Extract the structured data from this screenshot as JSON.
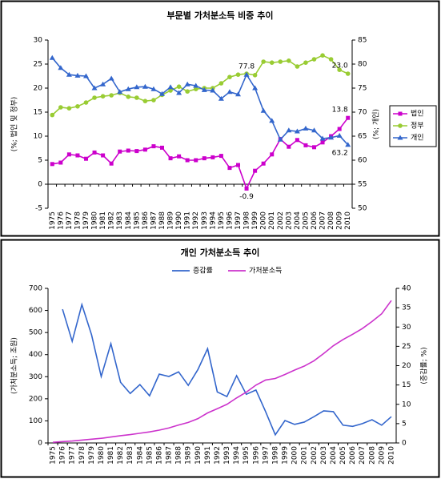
{
  "chart_data": [
    {
      "type": "line",
      "title": "부문별 가처분소득 비중 추이",
      "categories": [
        "1975",
        "1976",
        "1977",
        "1978",
        "1979",
        "1980",
        "1981",
        "1982",
        "1983",
        "1984",
        "1985",
        "1986",
        "1987",
        "1988",
        "1989",
        "1990",
        "1991",
        "1992",
        "1993",
        "1994",
        "1995",
        "1996",
        "1997",
        "1998",
        "1999",
        "2000",
        "2001",
        "2002",
        "2003",
        "2004",
        "2005",
        "2006",
        "2007",
        "2008",
        "2009",
        "2010"
      ],
      "ylabel": "(%; 법인 및 정부)",
      "y2label": "(%; 개인)",
      "ylim": [
        -5,
        30
      ],
      "yticks": [
        -5,
        0,
        5,
        10,
        15,
        20,
        25,
        30
      ],
      "y2lim": [
        50,
        85
      ],
      "y2ticks": [
        50,
        55,
        60,
        65,
        70,
        75,
        80,
        85
      ],
      "legend": "right",
      "series": [
        {
          "name": "법인",
          "color": "#cc00cc",
          "marker": "square",
          "axis": "y",
          "label_color": "#ff0000",
          "values": [
            4.2,
            4.5,
            6.2,
            6.0,
            5.3,
            6.6,
            6.0,
            4.3,
            6.8,
            7.0,
            6.9,
            7.2,
            7.9,
            7.6,
            5.4,
            5.8,
            5.0,
            5.0,
            5.4,
            5.6,
            5.9,
            3.4,
            4.0,
            -0.9,
            2.8,
            4.3,
            6.2,
            9.4,
            7.8,
            9.2,
            8.1,
            7.7,
            8.7,
            10.0,
            11.5,
            13.8
          ],
          "value_labels": [
            null,
            null,
            null,
            null,
            null,
            null,
            null,
            null,
            null,
            null,
            null,
            null,
            null,
            null,
            null,
            null,
            null,
            null,
            null,
            null,
            null,
            null,
            null,
            "-0.9",
            null,
            null,
            null,
            null,
            null,
            null,
            null,
            null,
            null,
            null,
            null,
            "13.8"
          ]
        },
        {
          "name": "정부",
          "color": "#99cc33",
          "marker": "circle",
          "axis": "y",
          "label_color": "#339999",
          "values": [
            14.4,
            16.0,
            15.8,
            16.2,
            17.0,
            18.0,
            18.3,
            18.5,
            19.0,
            18.2,
            18.0,
            17.3,
            17.5,
            18.6,
            19.5,
            20.3,
            19.3,
            19.8,
            20.0,
            20.0,
            21.0,
            22.3,
            22.8,
            23.0,
            22.7,
            25.5,
            25.3,
            25.5,
            25.7,
            24.5,
            25.3,
            26.0,
            26.8,
            26.0,
            23.8,
            23.0
          ],
          "value_labels": [
            null,
            null,
            null,
            null,
            null,
            null,
            null,
            null,
            null,
            null,
            null,
            null,
            null,
            null,
            null,
            null,
            null,
            null,
            null,
            null,
            null,
            null,
            null,
            null,
            null,
            null,
            null,
            null,
            null,
            null,
            null,
            null,
            null,
            null,
            null,
            "23.0"
          ]
        },
        {
          "name": "개인",
          "color": "#3366cc",
          "marker": "triangle",
          "axis": "y2",
          "label_color": "#336699",
          "values": [
            81.3,
            79.2,
            77.8,
            77.6,
            77.5,
            75.0,
            75.8,
            77.0,
            74.2,
            74.8,
            75.2,
            75.3,
            74.8,
            73.8,
            75.2,
            74.0,
            75.8,
            75.5,
            74.6,
            74.5,
            72.8,
            74.2,
            73.7,
            77.8,
            75.0,
            70.3,
            68.2,
            64.3,
            66.2,
            66.0,
            66.6,
            66.2,
            64.5,
            64.7,
            65.1,
            63.2
          ],
          "value_labels": [
            null,
            null,
            null,
            null,
            null,
            null,
            null,
            null,
            null,
            null,
            null,
            null,
            null,
            null,
            null,
            null,
            null,
            null,
            null,
            null,
            null,
            null,
            null,
            "77.8",
            null,
            null,
            null,
            null,
            null,
            null,
            null,
            null,
            null,
            null,
            null,
            "63.2"
          ]
        }
      ]
    },
    {
      "type": "line",
      "title": "개인 가처분소득 추이",
      "categories": [
        "1975",
        "1976",
        "1977",
        "1978",
        "1979",
        "1980",
        "1981",
        "1982",
        "1983",
        "1984",
        "1985",
        "1986",
        "1987",
        "1988",
        "1989",
        "1990",
        "1991",
        "1992",
        "1993",
        "1994",
        "1995",
        "1996",
        "1997",
        "1998",
        "1999",
        "2000",
        "2001",
        "2002",
        "2003",
        "2004",
        "2005",
        "2006",
        "2007",
        "2008",
        "2009",
        "2010"
      ],
      "ylabel": "(가처분소득; 조원)",
      "y2label": "(증감률; %)",
      "ylim": [
        0,
        700
      ],
      "yticks": [
        0,
        100,
        200,
        300,
        400,
        500,
        600,
        700
      ],
      "y2lim": [
        0,
        40
      ],
      "y2ticks": [
        0,
        5,
        10,
        15,
        20,
        25,
        30,
        35,
        40
      ],
      "legend": "top",
      "series": [
        {
          "name": "증감률",
          "color": "#3366cc",
          "axis": "y2",
          "values": [
            null,
            34.6,
            26.3,
            35.8,
            28.0,
            17.2,
            25.7,
            15.7,
            12.8,
            15.1,
            12.2,
            17.8,
            17.2,
            18.4,
            14.9,
            19.0,
            24.4,
            13.2,
            12.0,
            17.4,
            12.6,
            13.7,
            8.1,
            2.1,
            5.8,
            4.8,
            5.4,
            6.8,
            8.3,
            8.1,
            4.6,
            4.3,
            5.0,
            6.0,
            4.6,
            6.8
          ]
        },
        {
          "name": "가처분소득",
          "color": "#cc33cc",
          "axis": "y",
          "values": [
            3,
            6,
            9,
            13,
            17,
            21,
            27,
            33,
            38,
            44,
            50,
            58,
            68,
            81,
            93,
            110,
            136,
            155,
            175,
            204,
            230,
            262,
            285,
            292,
            310,
            330,
            348,
            372,
            405,
            440,
            468,
            492,
            518,
            550,
            585,
            645
          ]
        }
      ]
    }
  ]
}
